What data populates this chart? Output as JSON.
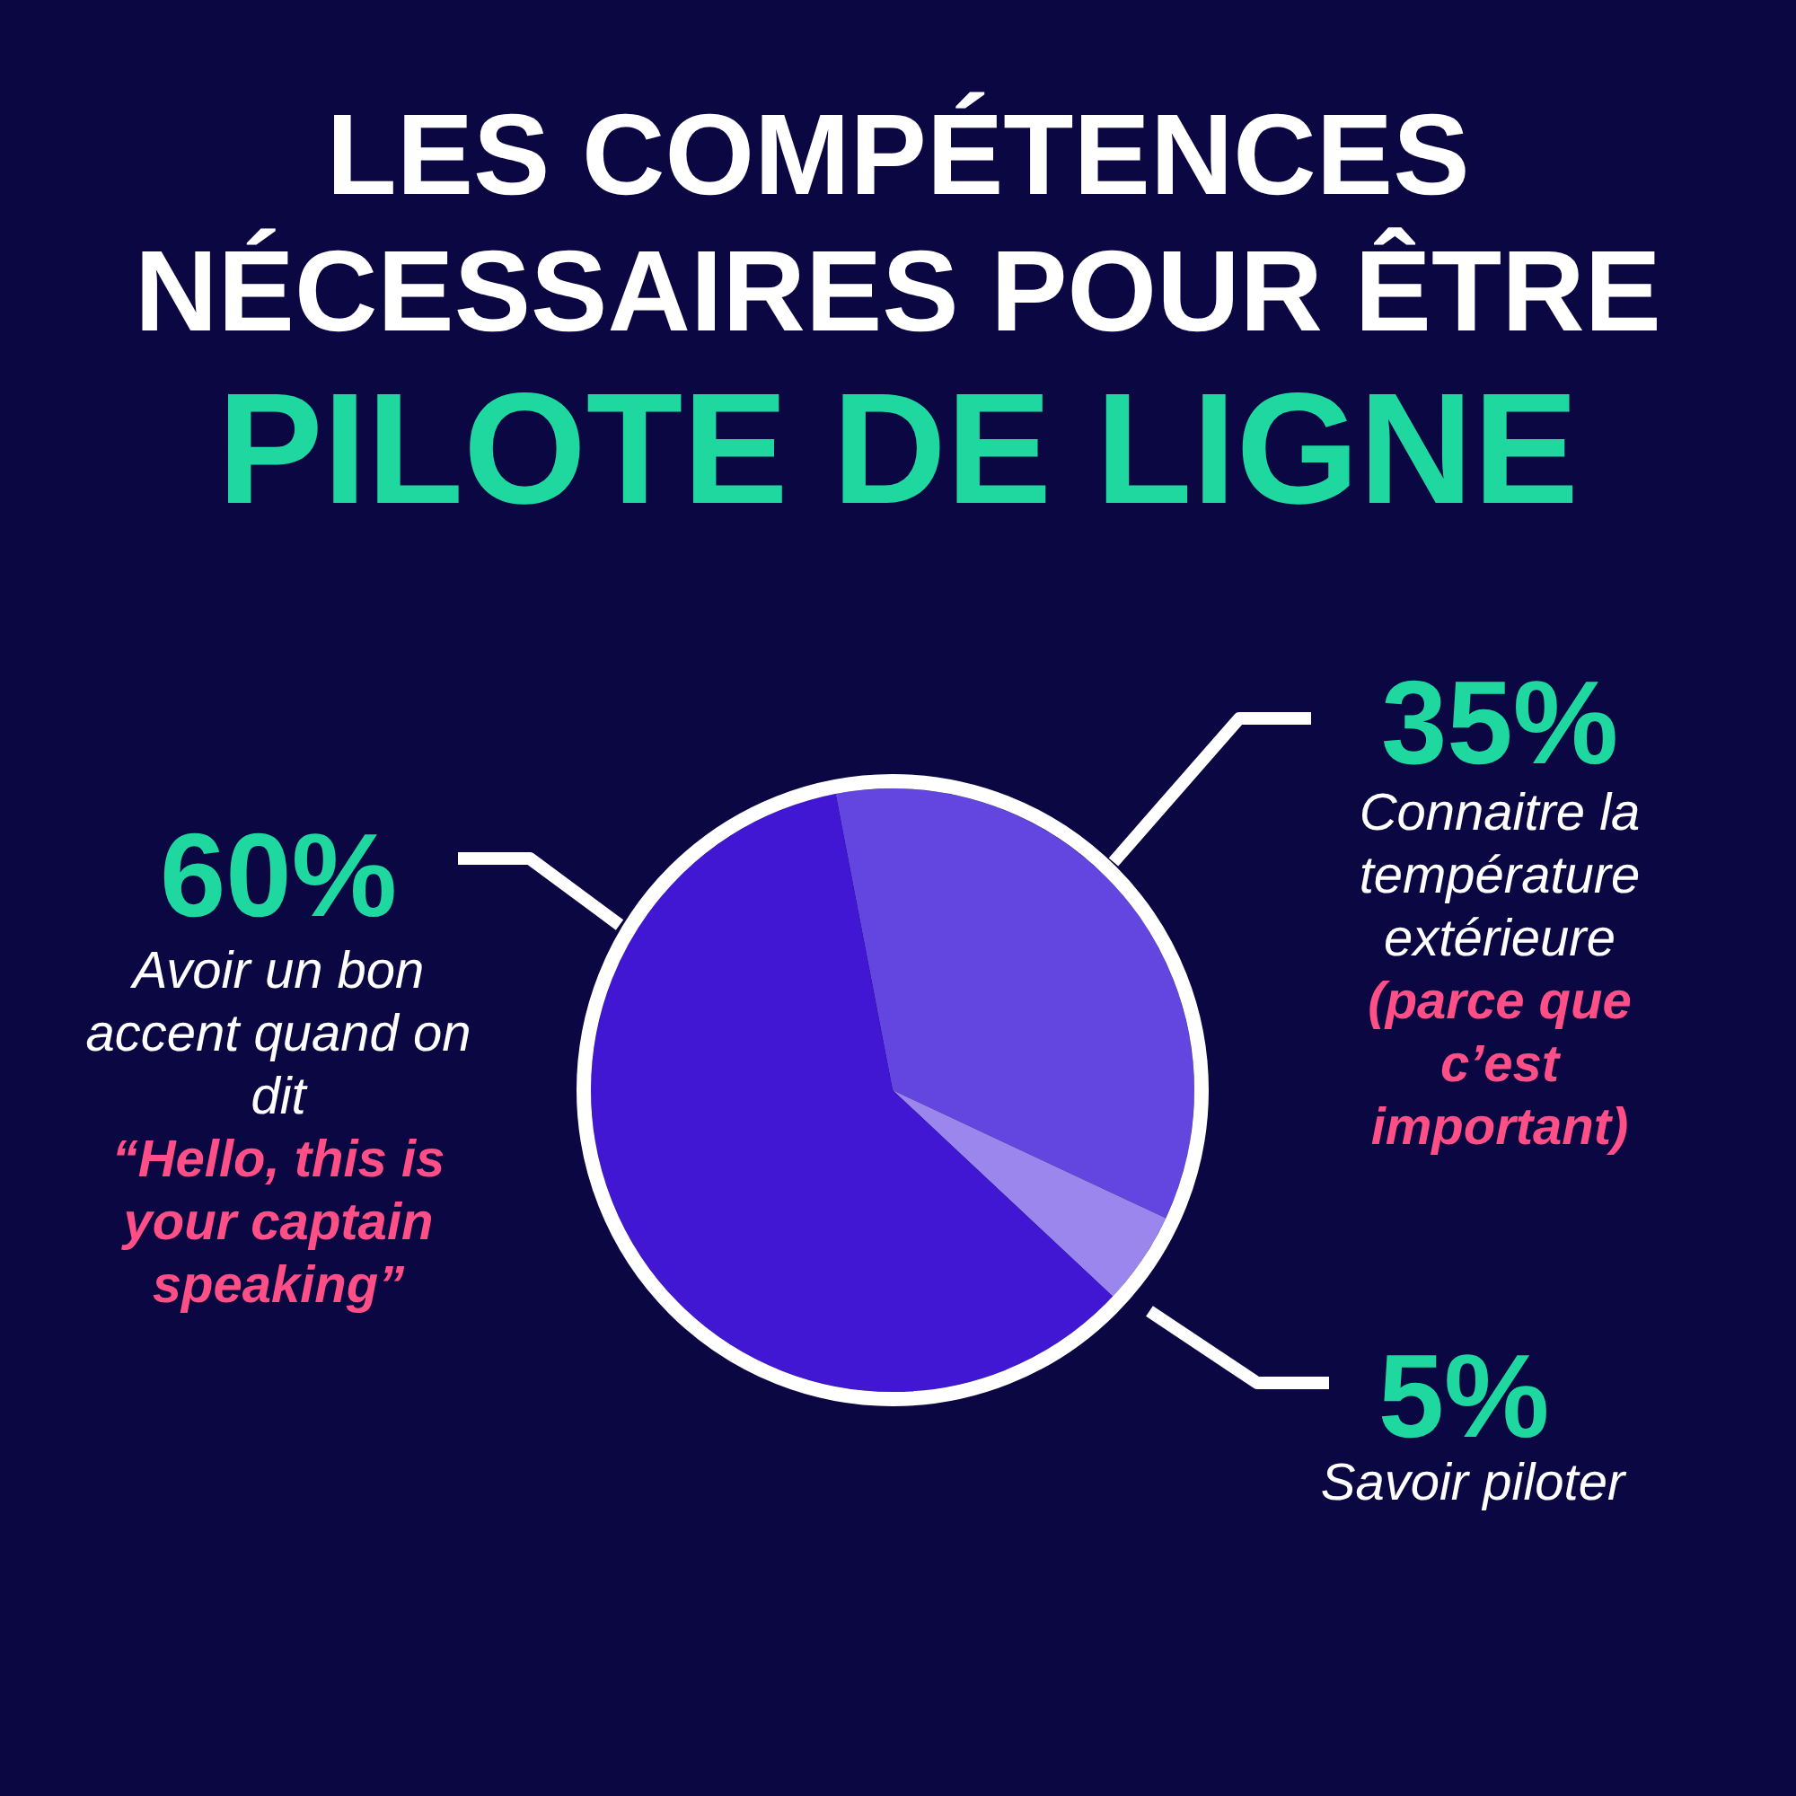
{
  "chart_data": {
    "type": "pie",
    "title": "LES COMPÉTENCES NÉCESSAIRES POUR ÊTRE",
    "subtitle": "PILOTE DE LIGNE",
    "categories": [
      "Connaitre la température extérieure",
      "Savoir piloter",
      "Avoir un bon accent quand on dit"
    ],
    "values": [
      35,
      5,
      60
    ],
    "colors": [
      "#6345e0",
      "#9b86ee",
      "#4117d4"
    ],
    "value_labels": [
      "35%",
      "5%",
      "60%"
    ],
    "annotations": [
      "(parce que c’est important)",
      null,
      "“Hello, this is your captain speaking”"
    ]
  }
}
